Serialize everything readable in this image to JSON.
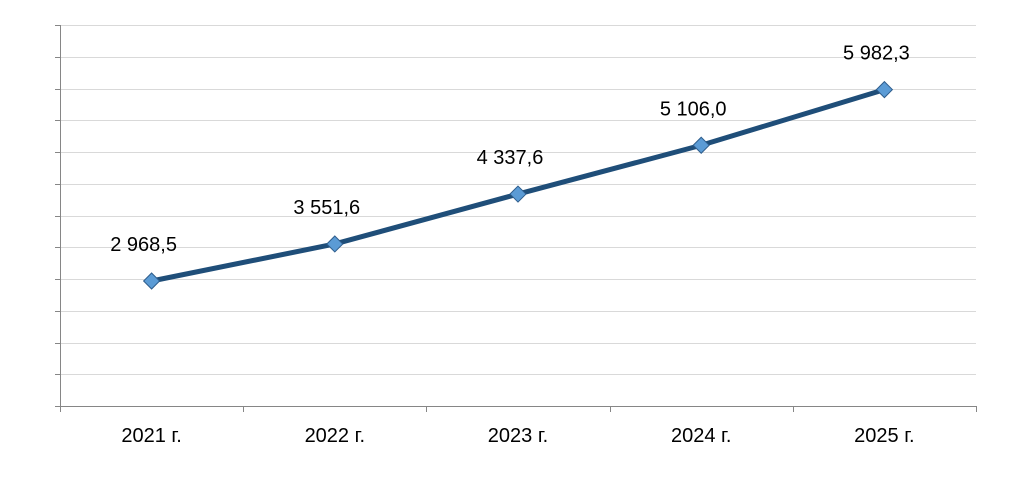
{
  "chart_data": {
    "type": "line",
    "categories": [
      "2021 г.",
      "2022 г.",
      "2023 г.",
      "2024 г.",
      "2025 г."
    ],
    "series": [
      {
        "values": [
          2968.5,
          3551.6,
          4337.6,
          5106.0,
          5982.3
        ],
        "labels": [
          "2 968,5",
          "3 551,6",
          "4 337,6",
          "5 106,0",
          "5 982,3"
        ]
      }
    ],
    "ylim": [
      1000,
      7000
    ],
    "y_grid_step": 500,
    "grid": true,
    "y_tick_labels_visible": false,
    "legend": "none",
    "colors": {
      "line": "#1f4e79",
      "marker_fill": "#5b9bd5",
      "marker_stroke": "#2e5d8c",
      "grid": "#d9d9d9",
      "axis": "#868686"
    }
  }
}
